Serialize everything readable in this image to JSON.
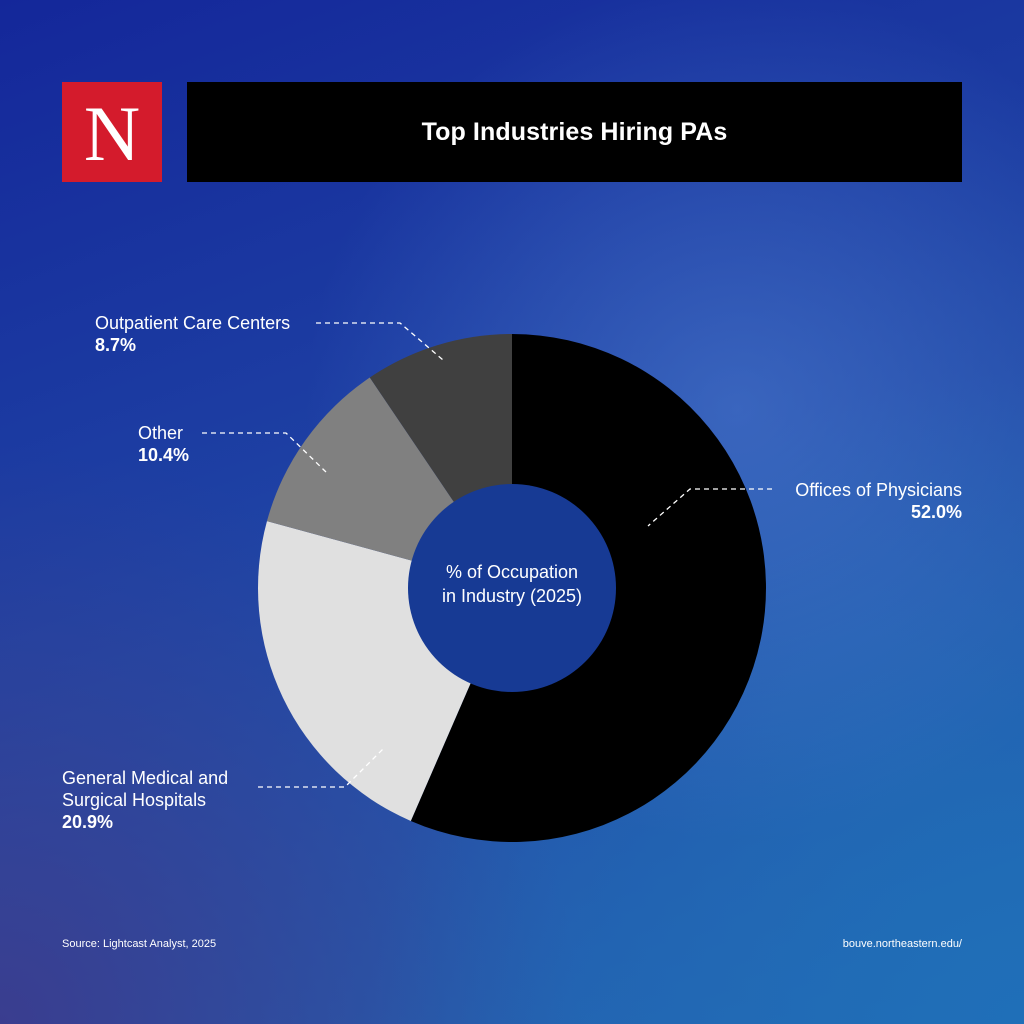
{
  "logo": {
    "letter": "N"
  },
  "header": {
    "title": "Top Industries Hiring PAs"
  },
  "chart_data": {
    "type": "pie",
    "variant": "donut",
    "center_label": [
      "% of Occupation",
      "in Industry (2025)"
    ],
    "slices": [
      {
        "name": "Offices of Physicians",
        "label_lines": [
          "Offices of Physicians"
        ],
        "value": 52.0,
        "value_label": "52.0%",
        "color": "#000000"
      },
      {
        "name": "General Medical and Surgical Hospitals",
        "label_lines": [
          "General Medical and",
          "Surgical Hospitals"
        ],
        "value": 20.9,
        "value_label": "20.9%",
        "color": "#e0e0e0"
      },
      {
        "name": "Other",
        "label_lines": [
          "Other"
        ],
        "value": 10.4,
        "value_label": "10.4%",
        "color": "#808080"
      },
      {
        "name": "Outpatient Care Centers",
        "label_lines": [
          "Outpatient Care Centers"
        ],
        "value": 8.7,
        "value_label": "8.7%",
        "color": "#404040"
      }
    ],
    "hole_color": "#173a94"
  },
  "footer": {
    "source": "Source: Lightcast Analyst, 2025",
    "url": "bouve.northeastern.edu/"
  }
}
